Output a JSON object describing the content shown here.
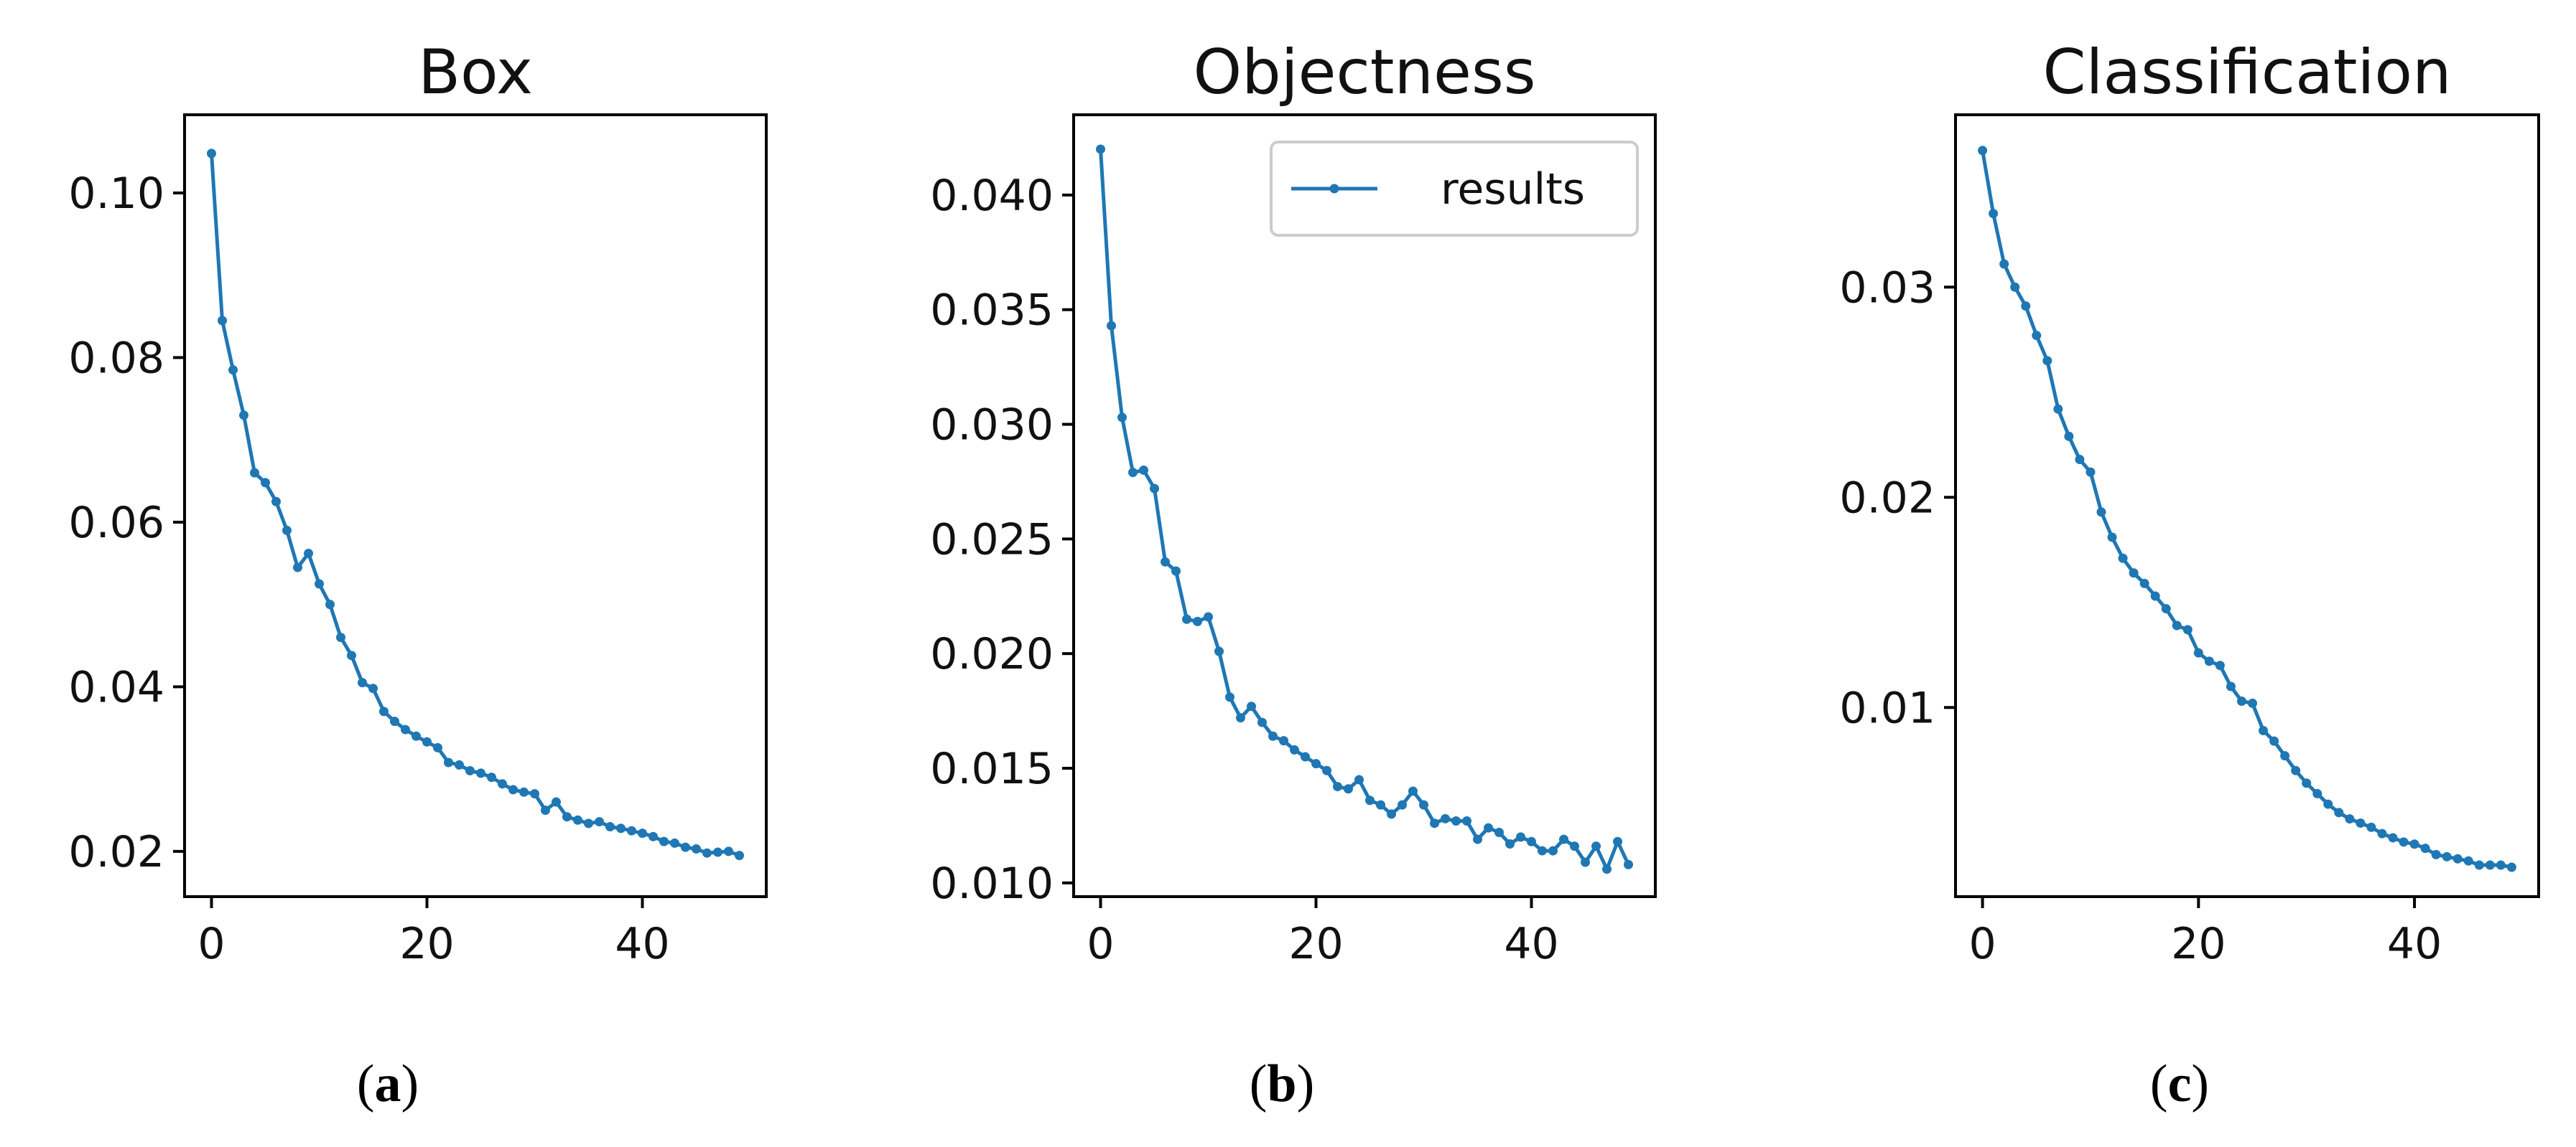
{
  "colors": {
    "series": "#1f77b4",
    "axes": "#000000",
    "background": "#ffffff"
  },
  "chart_data": [
    {
      "type": "line",
      "title": "Box",
      "caption": {
        "open": "(",
        "letter": "a",
        "close": ")"
      },
      "xlabel": "",
      "ylabel": "",
      "xlim": [
        -2.5,
        51.5
      ],
      "ylim": [
        0.0145,
        0.1095
      ],
      "xticks": [
        0,
        20,
        40
      ],
      "xtick_labels": [
        "0",
        "20",
        "40"
      ],
      "yticks": [
        0.02,
        0.04,
        0.06,
        0.08,
        0.1
      ],
      "ytick_labels": [
        "0.02",
        "0.04",
        "0.06",
        "0.08",
        "0.10"
      ],
      "legend": null,
      "series": [
        {
          "name": "results",
          "x": [
            0,
            1,
            2,
            3,
            4,
            5,
            6,
            7,
            8,
            9,
            10,
            11,
            12,
            13,
            14,
            15,
            16,
            17,
            18,
            19,
            20,
            21,
            22,
            23,
            24,
            25,
            26,
            27,
            28,
            29,
            30,
            31,
            32,
            33,
            34,
            35,
            36,
            37,
            38,
            39,
            40,
            41,
            42,
            43,
            44,
            45,
            46,
            47,
            48,
            49
          ],
          "values": [
            0.1048,
            0.0845,
            0.0785,
            0.073,
            0.066,
            0.0648,
            0.0625,
            0.059,
            0.0545,
            0.0562,
            0.0525,
            0.05,
            0.046,
            0.0438,
            0.0405,
            0.0398,
            0.037,
            0.0358,
            0.0348,
            0.034,
            0.0333,
            0.0326,
            0.0308,
            0.0305,
            0.0298,
            0.0295,
            0.029,
            0.0282,
            0.0275,
            0.0272,
            0.027,
            0.025,
            0.026,
            0.0242,
            0.0238,
            0.0234,
            0.0236,
            0.023,
            0.0228,
            0.0225,
            0.0222,
            0.0218,
            0.0212,
            0.021,
            0.0205,
            0.0203,
            0.0198,
            0.0199,
            0.02,
            0.0195
          ]
        }
      ]
    },
    {
      "type": "line",
      "title": "Objectness",
      "caption": {
        "open": "(",
        "letter": "b",
        "close": ")"
      },
      "xlabel": "",
      "ylabel": "",
      "xlim": [
        -2.5,
        51.5
      ],
      "ylim": [
        0.0094,
        0.0435
      ],
      "xticks": [
        0,
        20,
        40
      ],
      "xtick_labels": [
        "0",
        "20",
        "40"
      ],
      "yticks": [
        0.01,
        0.015,
        0.02,
        0.025,
        0.03,
        0.035,
        0.04
      ],
      "ytick_labels": [
        "0.010",
        "0.015",
        "0.020",
        "0.025",
        "0.030",
        "0.035",
        "0.040"
      ],
      "legend": {
        "position": "upper-right",
        "entries": [
          "results"
        ]
      },
      "series": [
        {
          "name": "results",
          "x": [
            0,
            1,
            2,
            3,
            4,
            5,
            6,
            7,
            8,
            9,
            10,
            11,
            12,
            13,
            14,
            15,
            16,
            17,
            18,
            19,
            20,
            21,
            22,
            23,
            24,
            25,
            26,
            27,
            28,
            29,
            30,
            31,
            32,
            33,
            34,
            35,
            36,
            37,
            38,
            39,
            40,
            41,
            42,
            43,
            44,
            45,
            46,
            47,
            48,
            49
          ],
          "values": [
            0.042,
            0.0343,
            0.0303,
            0.0279,
            0.028,
            0.0272,
            0.024,
            0.0236,
            0.0215,
            0.0214,
            0.0216,
            0.0201,
            0.0181,
            0.0172,
            0.0177,
            0.017,
            0.0164,
            0.0162,
            0.0158,
            0.0155,
            0.0152,
            0.0149,
            0.0142,
            0.0141,
            0.0145,
            0.0136,
            0.0134,
            0.013,
            0.0134,
            0.014,
            0.0134,
            0.0126,
            0.0128,
            0.0127,
            0.0127,
            0.0119,
            0.0124,
            0.0122,
            0.0117,
            0.012,
            0.0118,
            0.0114,
            0.0114,
            0.0119,
            0.0116,
            0.0109,
            0.0116,
            0.0106,
            0.0118,
            0.0108
          ]
        }
      ]
    },
    {
      "type": "line",
      "title": "Classification",
      "caption": {
        "open": "(",
        "letter": "c",
        "close": ")"
      },
      "xlabel": "",
      "ylabel": "",
      "xlim": [
        -2.5,
        51.5
      ],
      "ylim": [
        0.001,
        0.0382
      ],
      "xticks": [
        0,
        20,
        40
      ],
      "xtick_labels": [
        "0",
        "20",
        "40"
      ],
      "yticks": [
        0.01,
        0.02,
        0.03
      ],
      "ytick_labels": [
        "0.01",
        "0.02",
        "0.03"
      ],
      "legend": null,
      "series": [
        {
          "name": "results",
          "x": [
            0,
            1,
            2,
            3,
            4,
            5,
            6,
            7,
            8,
            9,
            10,
            11,
            12,
            13,
            14,
            15,
            16,
            17,
            18,
            19,
            20,
            21,
            22,
            23,
            24,
            25,
            26,
            27,
            28,
            29,
            30,
            31,
            32,
            33,
            34,
            35,
            36,
            37,
            38,
            39,
            40,
            41,
            42,
            43,
            44,
            45,
            46,
            47,
            48,
            49
          ],
          "values": [
            0.0365,
            0.0335,
            0.0311,
            0.03,
            0.0291,
            0.0277,
            0.0265,
            0.0242,
            0.0229,
            0.0218,
            0.0212,
            0.0193,
            0.0181,
            0.0171,
            0.0164,
            0.0159,
            0.0153,
            0.0147,
            0.0139,
            0.0137,
            0.0126,
            0.0122,
            0.012,
            0.011,
            0.0103,
            0.0102,
            0.0089,
            0.0084,
            0.0077,
            0.007,
            0.0064,
            0.0059,
            0.0054,
            0.005,
            0.0047,
            0.0045,
            0.0043,
            0.004,
            0.0038,
            0.0036,
            0.0035,
            0.0033,
            0.003,
            0.0029,
            0.0028,
            0.0027,
            0.0025,
            0.0025,
            0.0025,
            0.0024
          ]
        }
      ]
    }
  ]
}
